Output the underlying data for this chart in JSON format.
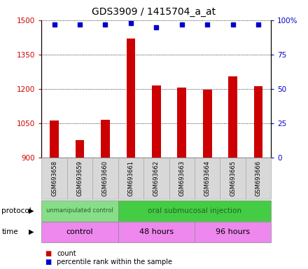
{
  "title": "GDS3909 / 1415704_a_at",
  "samples": [
    "GSM693658",
    "GSM693659",
    "GSM693660",
    "GSM693661",
    "GSM693662",
    "GSM693663",
    "GSM693664",
    "GSM693665",
    "GSM693666"
  ],
  "counts": [
    1060,
    975,
    1065,
    1420,
    1215,
    1205,
    1195,
    1255,
    1210
  ],
  "percentile_ranks": [
    97,
    97,
    97,
    98,
    95,
    97,
    97,
    97,
    97
  ],
  "ylim_left": [
    900,
    1500
  ],
  "ylim_right": [
    0,
    100
  ],
  "yticks_left": [
    900,
    1050,
    1200,
    1350,
    1500
  ],
  "yticks_right": [
    0,
    25,
    50,
    75,
    100
  ],
  "bar_color": "#cc0000",
  "dot_color": "#0000cc",
  "protocol_groups": [
    {
      "label": "unmanipulated control",
      "start": 0,
      "end": 3,
      "color": "#88dd88"
    },
    {
      "label": "oral submucosal injection",
      "start": 3,
      "end": 9,
      "color": "#44cc44"
    }
  ],
  "time_groups": [
    {
      "label": "control",
      "start": 0,
      "end": 3
    },
    {
      "label": "48 hours",
      "start": 3,
      "end": 6
    },
    {
      "label": "96 hours",
      "start": 6,
      "end": 9
    }
  ],
  "time_color": "#ee88ee",
  "sample_box_color": "#d8d8d8",
  "legend_count_color": "#cc0000",
  "legend_dot_color": "#0000cc",
  "title_fontsize": 10,
  "tick_fontsize": 7.5,
  "annotation_fontsize": 7,
  "bar_width": 0.35
}
